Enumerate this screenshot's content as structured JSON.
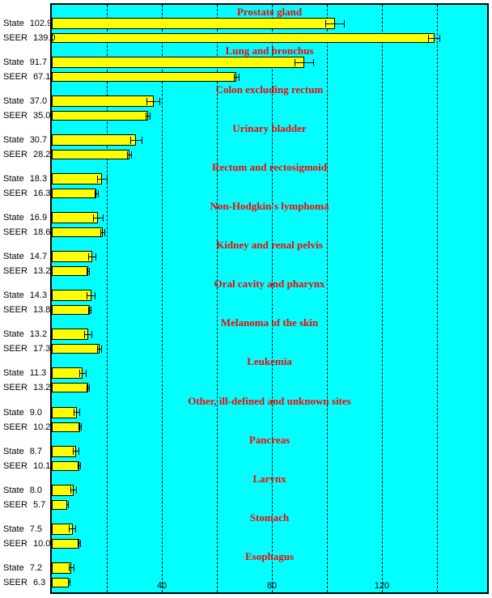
{
  "colors": {
    "page_background": "#FFFFFF",
    "plot_background": "#00FFFF",
    "bar_fill": "#FFFF00",
    "border": "#000000",
    "gridline": "#000000",
    "category_title": "#FF0000",
    "text": "#000000"
  },
  "chart_data": {
    "type": "bar",
    "orientation": "horizontal",
    "series_names": [
      "State",
      "SEER"
    ],
    "xlim": [
      0,
      158
    ],
    "grid": true,
    "x_gridline_values": [
      20,
      40,
      60,
      80,
      100,
      120,
      140
    ],
    "x_ticks": [
      {
        "value": 40,
        "label": "40"
      },
      {
        "value": 80,
        "label": "80"
      },
      {
        "value": 120,
        "label": "120"
      }
    ],
    "groups": [
      {
        "title": "Prostate gland",
        "bars": [
          {
            "series": "State",
            "value": 102.9,
            "value_text": "102.9",
            "ci": 3.6
          },
          {
            "series": "SEER",
            "value": 139.0,
            "value_text": "139.0",
            "ci": 2.2
          }
        ]
      },
      {
        "title": "Lung and bronchus",
        "bars": [
          {
            "series": "State",
            "value": 91.7,
            "value_text": "91.7",
            "ci": 3.6
          },
          {
            "series": "SEER",
            "value": 67.1,
            "value_text": "67.1",
            "ci": 1.0
          }
        ]
      },
      {
        "title": "Colon excluding rectum",
        "bars": [
          {
            "series": "State",
            "value": 37.0,
            "value_text": "37.0",
            "ci": 2.5
          },
          {
            "series": "SEER",
            "value": 35.0,
            "value_text": "35.0",
            "ci": 1.0
          }
        ]
      },
      {
        "title": "Urinary bladder",
        "bars": [
          {
            "series": "State",
            "value": 30.7,
            "value_text": "30.7",
            "ci": 2.1
          },
          {
            "series": "SEER",
            "value": 28.2,
            "value_text": "28.2",
            "ci": 0.9
          }
        ]
      },
      {
        "title": "Rectum and rectosigmoid",
        "bars": [
          {
            "series": "State",
            "value": 18.3,
            "value_text": "18.3",
            "ci": 1.9
          },
          {
            "series": "SEER",
            "value": 16.3,
            "value_text": "16.3",
            "ci": 0.8
          }
        ]
      },
      {
        "title": "Non-Hodgkin's lymphoma",
        "bars": [
          {
            "series": "State",
            "value": 16.9,
            "value_text": "16.9",
            "ci": 1.8
          },
          {
            "series": "SEER",
            "value": 18.6,
            "value_text": "18.6",
            "ci": 0.9
          }
        ]
      },
      {
        "title": "Kidney and renal pelvis",
        "bars": [
          {
            "series": "State",
            "value": 14.7,
            "value_text": "14.7",
            "ci": 1.6
          },
          {
            "series": "SEER",
            "value": 13.2,
            "value_text": "13.2",
            "ci": 0.7
          }
        ]
      },
      {
        "title": "Oral cavity and pharynx",
        "bars": [
          {
            "series": "State",
            "value": 14.3,
            "value_text": "14.3",
            "ci": 1.6
          },
          {
            "series": "SEER",
            "value": 13.8,
            "value_text": "13.8",
            "ci": 0.7
          }
        ]
      },
      {
        "title": "Melanoma of the skin",
        "bars": [
          {
            "series": "State",
            "value": 13.2,
            "value_text": "13.2",
            "ci": 1.5
          },
          {
            "series": "SEER",
            "value": 17.3,
            "value_text": "17.3",
            "ci": 0.8
          }
        ]
      },
      {
        "title": "Leukemia",
        "bars": [
          {
            "series": "State",
            "value": 11.3,
            "value_text": "11.3",
            "ci": 1.4
          },
          {
            "series": "SEER",
            "value": 13.2,
            "value_text": "13.2",
            "ci": 0.7
          }
        ]
      },
      {
        "title": "Other, ill-defined and unknown sites",
        "bars": [
          {
            "series": "State",
            "value": 9.0,
            "value_text": "9.0",
            "ci": 1.2
          },
          {
            "series": "SEER",
            "value": 10.2,
            "value_text": "10.2",
            "ci": 0.6
          }
        ]
      },
      {
        "title": "Pancreas",
        "bars": [
          {
            "series": "State",
            "value": 8.7,
            "value_text": "8.7",
            "ci": 1.2
          },
          {
            "series": "SEER",
            "value": 10.1,
            "value_text": "10.1",
            "ci": 0.6
          }
        ]
      },
      {
        "title": "Larynx",
        "bars": [
          {
            "series": "State",
            "value": 8.0,
            "value_text": "8.0",
            "ci": 1.2
          },
          {
            "series": "SEER",
            "value": 5.7,
            "value_text": "5.7",
            "ci": 0.5
          }
        ]
      },
      {
        "title": "Stomach",
        "bars": [
          {
            "series": "State",
            "value": 7.5,
            "value_text": "7.5",
            "ci": 1.2
          },
          {
            "series": "SEER",
            "value": 10.0,
            "value_text": "10.0",
            "ci": 0.6
          }
        ]
      },
      {
        "title": "Esophagus",
        "bars": [
          {
            "series": "State",
            "value": 7.2,
            "value_text": "7.2",
            "ci": 1.1
          },
          {
            "series": "SEER",
            "value": 6.3,
            "value_text": "6.3",
            "ci": 0.5
          }
        ]
      }
    ]
  }
}
